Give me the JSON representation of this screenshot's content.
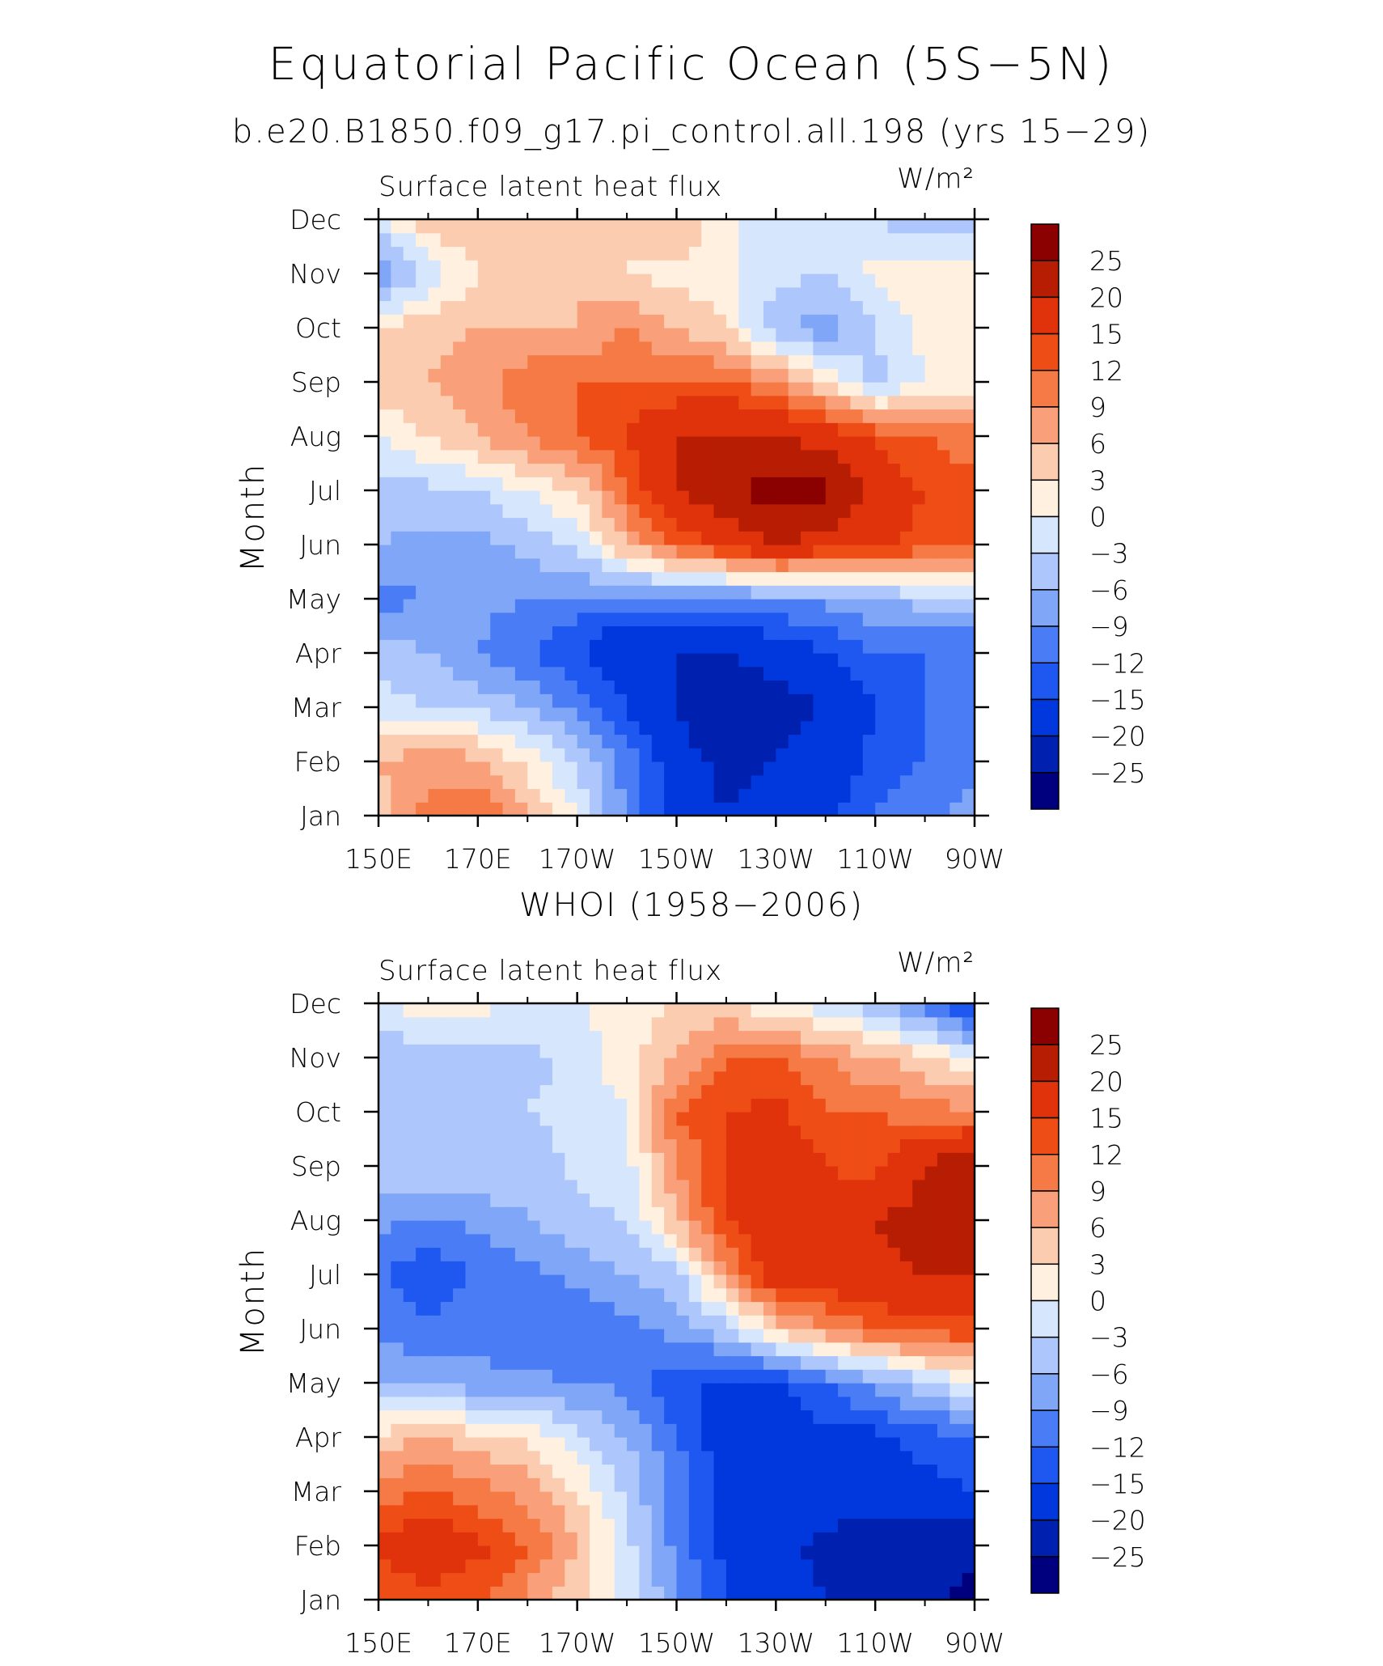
{
  "title": "Equatorial Pacific Ocean (5S−5N)",
  "subtitle": "b.e20.B1850.f09_g17.pi_control.all.198 (yrs 15−29)",
  "colors": [
    "#00007f",
    "#0020b0",
    "#0038dd",
    "#1e58f0",
    "#4a7df5",
    "#80a6f8",
    "#adc6fb",
    "#d6e6fd",
    "#fff0e0",
    "#fcccb0",
    "#f9a07a",
    "#f57a45",
    "#ef4d16",
    "#e0320b",
    "#b71d03",
    "#8b0000"
  ],
  "chart_data": [
    {
      "type": "heatmap",
      "heading": "",
      "left_label": "Surface latent heat flux",
      "units": "W/m²",
      "ylabel": "Month",
      "x_ticks": [
        "150E",
        "170E",
        "170W",
        "150W",
        "130W",
        "110W",
        "90W"
      ],
      "y_ticks": [
        "Jan",
        "Feb",
        "Mar",
        "Apr",
        "May",
        "Jun",
        "Jul",
        "Aug",
        "Sep",
        "Oct",
        "Nov",
        "Dec"
      ],
      "x_range_lon": [
        150,
        270
      ],
      "colorbar_levels": [
        "25",
        "20",
        "15",
        "12",
        "9",
        "6",
        "3",
        "0",
        "−3",
        "−6",
        "−9",
        "−12",
        "−15",
        "−20",
        "−25"
      ],
      "columns_lon": [
        150,
        160,
        170,
        180,
        190,
        200,
        210,
        220,
        230,
        240,
        250,
        260,
        270
      ],
      "values": [
        [
          4,
          10,
          12,
          6,
          0,
          -10,
          -18,
          -20,
          -18,
          -16,
          -12,
          -10,
          -8
        ],
        [
          6,
          8,
          7,
          2,
          -4,
          -10,
          -18,
          -21,
          -20,
          -18,
          -14,
          -12,
          -10
        ],
        [
          -2,
          -3,
          -4,
          -6,
          -10,
          -15,
          -20,
          -26,
          -22,
          -20,
          -15,
          -12,
          -10
        ],
        [
          -4,
          -6,
          -9,
          -12,
          -15,
          -20,
          -20,
          -20,
          -18,
          -15,
          -12,
          -12,
          -12
        ],
        [
          -10,
          -9,
          -8,
          -9,
          -10,
          -10,
          -10,
          -10,
          -9,
          -8,
          -6,
          -5,
          -4
        ],
        [
          -6,
          -7,
          -7,
          -5,
          -2,
          6,
          12,
          16,
          20,
          18,
          16,
          14,
          12
        ],
        [
          -4,
          -4,
          -3,
          0,
          3,
          12,
          20,
          24,
          28,
          26,
          18,
          15,
          13
        ],
        [
          0,
          3,
          6,
          9,
          12,
          15,
          20,
          21,
          20,
          18,
          14,
          12,
          10
        ],
        [
          5,
          6,
          8,
          11,
          12,
          12,
          12,
          12,
          9,
          3,
          -4,
          0,
          2
        ],
        [
          3,
          5,
          6,
          6,
          6,
          9,
          6,
          3,
          -5,
          -8,
          -3,
          1,
          3
        ],
        [
          -9,
          -3,
          3,
          3,
          6,
          3,
          2,
          1,
          -2,
          -3,
          1,
          2,
          3
        ],
        [
          -2,
          6,
          6,
          6,
          3,
          3,
          6,
          1,
          -3,
          -3,
          -3,
          -6,
          -5
        ]
      ]
    },
    {
      "type": "heatmap",
      "heading": "WHOI (1958−2006)",
      "left_label": "Surface latent heat flux",
      "units": "W/m²",
      "ylabel": "Month",
      "x_ticks": [
        "150E",
        "170E",
        "170W",
        "150W",
        "130W",
        "110W",
        "90W"
      ],
      "y_ticks": [
        "Jan",
        "Feb",
        "Mar",
        "Apr",
        "May",
        "Jun",
        "Jul",
        "Aug",
        "Sep",
        "Oct",
        "Nov",
        "Dec"
      ],
      "x_range_lon": [
        150,
        270
      ],
      "colorbar_levels": [
        "25",
        "20",
        "15",
        "12",
        "9",
        "6",
        "3",
        "0",
        "−3",
        "−6",
        "−9",
        "−12",
        "−15",
        "−20",
        "−25"
      ],
      "columns_lon": [
        150,
        160,
        170,
        180,
        190,
        200,
        210,
        220,
        230,
        240,
        250,
        260,
        270
      ],
      "values": [
        [
          12,
          14,
          12,
          8,
          4,
          -2,
          -8,
          -15,
          -18,
          -20,
          -22,
          -24,
          -26
        ],
        [
          16,
          18,
          16,
          12,
          6,
          -2,
          -10,
          -16,
          -19,
          -21,
          -23,
          -24,
          -24
        ],
        [
          10,
          12,
          10,
          8,
          3,
          -4,
          -10,
          -16,
          -18,
          -18,
          -16,
          -16,
          -15
        ],
        [
          4,
          6,
          4,
          2,
          -2,
          -6,
          -12,
          -18,
          -16,
          -16,
          -16,
          -14,
          -12
        ],
        [
          -6,
          -6,
          -8,
          -8,
          -9,
          -10,
          -14,
          -16,
          -16,
          -12,
          -8,
          -4,
          0
        ],
        [
          -10,
          -12,
          -10,
          -12,
          -12,
          -10,
          -8,
          -4,
          4,
          9,
          12,
          14,
          14
        ],
        [
          -12,
          -14,
          -12,
          -10,
          -8,
          -6,
          -4,
          8,
          18,
          18,
          18,
          20,
          20
        ],
        [
          -8,
          -10,
          -8,
          -6,
          -4,
          -3,
          6,
          15,
          20,
          16,
          20,
          22,
          22
        ],
        [
          -4,
          -3,
          -3,
          -5,
          -2,
          -1,
          9,
          15,
          18,
          15,
          14,
          20,
          24
        ],
        [
          -4,
          -3,
          -5,
          -3,
          -2,
          0,
          12,
          15,
          16,
          12,
          12,
          10,
          10
        ],
        [
          -6,
          -5,
          -5,
          -4,
          -2,
          2,
          6,
          12,
          12,
          9,
          6,
          4,
          0
        ],
        [
          0,
          2,
          1,
          0,
          0,
          1,
          3,
          3,
          0,
          -2,
          -5,
          -10,
          -18
        ]
      ]
    }
  ]
}
